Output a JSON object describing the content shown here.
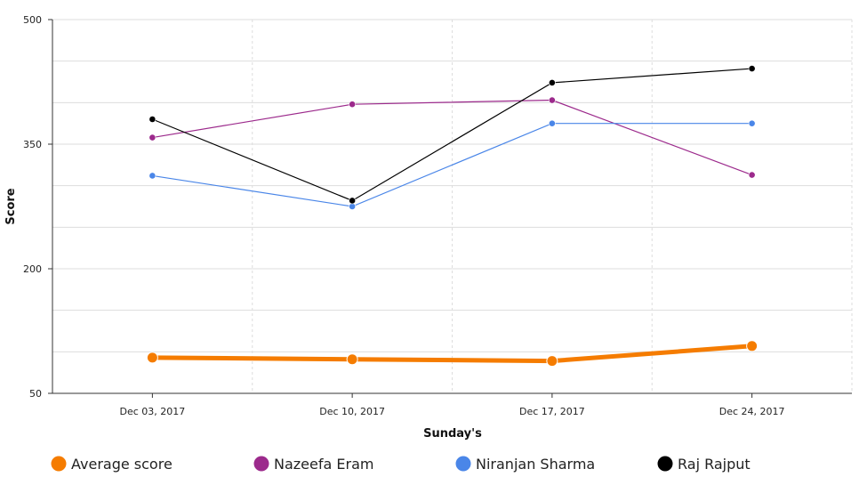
{
  "chart_data": {
    "type": "line",
    "title": "",
    "xlabel": "Sunday's",
    "ylabel": "Score",
    "categories": [
      "Dec 03, 2017",
      "Dec 10, 2017",
      "Dec 17, 2017",
      "Dec 24, 2017"
    ],
    "ylim": [
      50,
      500
    ],
    "yticks": [
      50,
      200,
      350,
      500
    ],
    "grid": true,
    "legend_position": "bottom",
    "series": [
      {
        "name": "Average score",
        "color": "#f57c00",
        "values": [
          93,
          91,
          89,
          107
        ]
      },
      {
        "name": "Nazeefa Eram",
        "color": "#9c2a8c",
        "values": [
          358,
          398,
          403,
          313
        ]
      },
      {
        "name": "Niranjan Sharma",
        "color": "#4a86e8",
        "values": [
          312,
          275,
          375,
          375
        ]
      },
      {
        "name": "Raj Rajput",
        "color": "#000000",
        "values": [
          380,
          282,
          424,
          441
        ]
      }
    ]
  }
}
